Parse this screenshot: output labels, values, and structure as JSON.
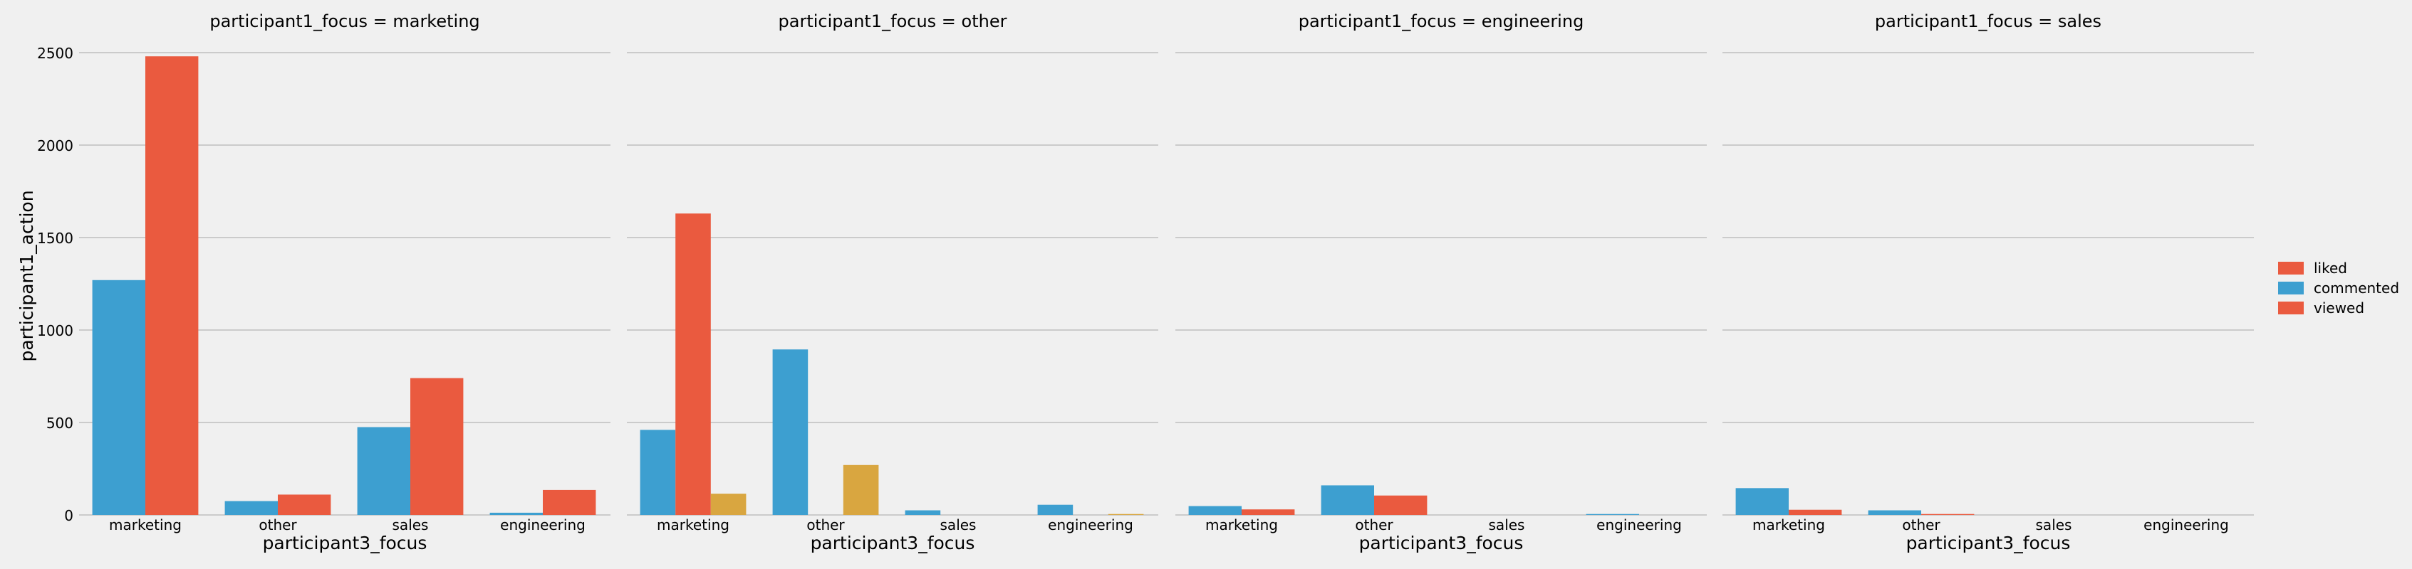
{
  "chart_data": {
    "type": "bar",
    "facet_variable": "participant1_focus",
    "ylabel": "participant1_action",
    "xlabel": "participant3_focus",
    "ylim": [
      0,
      2500
    ],
    "yticks": [
      0,
      500,
      1000,
      1500,
      2000,
      2500
    ],
    "grid": true,
    "legend_position": "right",
    "legend": [
      "liked",
      "commented",
      "viewed"
    ],
    "categories": [
      "marketing",
      "other",
      "sales",
      "engineering"
    ],
    "colors": {
      "commented": "#3d9fd0",
      "viewed": "#ea5a3f",
      "liked": "#d9a640",
      "grid": "#cbcbcb",
      "background": "#f0f0f0"
    },
    "facets": [
      {
        "title": "participant1_focus = marketing",
        "groups": [
          [
            {
              "s": "commented",
              "v": 1270
            },
            {
              "s": "viewed",
              "v": 2480
            }
          ],
          [
            {
              "s": "commented",
              "v": 75
            },
            {
              "s": "viewed",
              "v": 110
            }
          ],
          [
            {
              "s": "commented",
              "v": 475
            },
            {
              "s": "viewed",
              "v": 740
            }
          ],
          [
            {
              "s": "commented",
              "v": 12
            },
            {
              "s": "viewed",
              "v": 135
            }
          ]
        ]
      },
      {
        "title": "participant1_focus = other",
        "groups": [
          [
            {
              "s": "commented",
              "v": 460
            },
            {
              "s": "viewed",
              "v": 1630
            },
            {
              "s": "liked",
              "v": 115
            }
          ],
          [
            {
              "s": "commented",
              "v": 895
            },
            {
              "s": "viewed",
              "v": 0
            },
            {
              "s": "liked",
              "v": 270
            }
          ],
          [
            {
              "s": "commented",
              "v": 25
            },
            {
              "s": "viewed",
              "v": 0
            },
            {
              "s": "liked",
              "v": 0
            }
          ],
          [
            {
              "s": "commented",
              "v": 55
            },
            {
              "s": "viewed",
              "v": 0
            },
            {
              "s": "liked",
              "v": 5
            }
          ]
        ]
      },
      {
        "title": "participant1_focus = engineering",
        "groups": [
          [
            {
              "s": "commented",
              "v": 48
            },
            {
              "s": "viewed",
              "v": 30
            }
          ],
          [
            {
              "s": "commented",
              "v": 160
            },
            {
              "s": "viewed",
              "v": 105
            }
          ],
          [
            {
              "s": "commented",
              "v": 0
            },
            {
              "s": "viewed",
              "v": 0
            }
          ],
          [
            {
              "s": "commented",
              "v": 5
            },
            {
              "s": "viewed",
              "v": 0
            }
          ]
        ]
      },
      {
        "title": "participant1_focus = sales",
        "groups": [
          [
            {
              "s": "commented",
              "v": 145
            },
            {
              "s": "viewed",
              "v": 28
            }
          ],
          [
            {
              "s": "commented",
              "v": 25
            },
            {
              "s": "viewed",
              "v": 5
            }
          ],
          [
            {
              "s": "commented",
              "v": 0
            },
            {
              "s": "viewed",
              "v": 0
            }
          ],
          [
            {
              "s": "commented",
              "v": 0
            },
            {
              "s": "viewed",
              "v": 0
            }
          ]
        ]
      }
    ]
  }
}
